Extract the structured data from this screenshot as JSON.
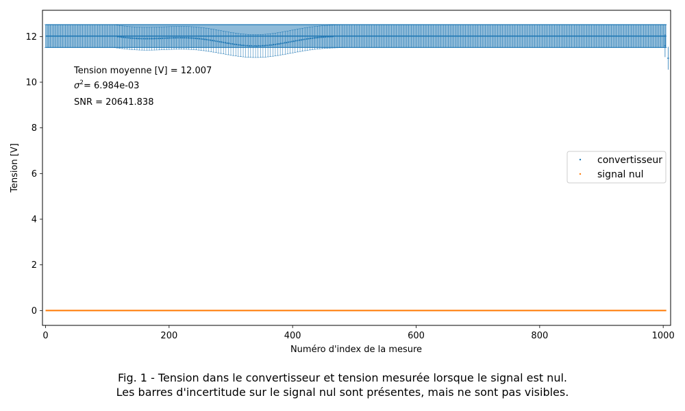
{
  "chart_data": {
    "type": "scatter",
    "title": "",
    "xlabel": "Numéro d'index de la mesure",
    "ylabel": "Tension [V]",
    "xlim": [
      -5,
      1012
    ],
    "ylim": [
      -0.65,
      13.15
    ],
    "x_ticks": [
      0,
      200,
      400,
      600,
      800,
      1000
    ],
    "y_ticks": [
      0,
      2,
      4,
      6,
      8,
      10,
      12
    ],
    "x_tick_labels": [
      "0",
      "200",
      "400",
      "600",
      "800",
      "1000"
    ],
    "y_tick_labels": [
      "0",
      "2",
      "4",
      "6",
      "8",
      "10",
      "12"
    ],
    "grid": false,
    "legend_position": "center-right",
    "n_points": 1006,
    "series": [
      {
        "name": "convertisseur",
        "color": "#1f77b4",
        "baseline": 12.02,
        "error_half_width": 0.5,
        "dip_region": {
          "x_start": 110,
          "x_end": 490,
          "min_value": 11.55
        },
        "end_drop": [
          {
            "x": 1003,
            "y": 11.6
          },
          {
            "x": 1008,
            "y": 11.05
          }
        ],
        "error_band": [
          11.52,
          12.52
        ]
      },
      {
        "name": "signal nul",
        "color": "#ff7f0e",
        "baseline": 0.0,
        "error_half_width": 0.0
      }
    ],
    "annotations": {
      "mean": "Tension moyenne [V] = 12.007",
      "variance_symbol": "σ",
      "variance_exp": "2",
      "variance_value": "= 6.984e-03",
      "snr": "SNR = 20641.838"
    }
  },
  "caption": {
    "line1": "Fig. 1 - Tension dans le convertisseur et tension mesurée lorsque le signal est nul.",
    "line2": "Les barres d'incertitude sur le signal nul sont présentes, mais ne sont pas visibles."
  }
}
